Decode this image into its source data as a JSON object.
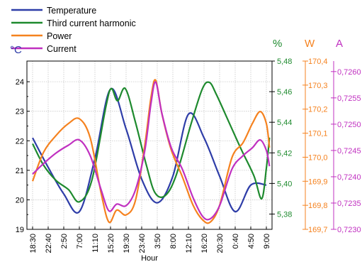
{
  "chart_data": {
    "type": "line",
    "xlabel": "Hour",
    "categories": [
      "18:30",
      "22:40",
      "2:50",
      "7:00",
      "11:10",
      "15:20",
      "19:30",
      "23:40",
      "3:50",
      "8:00",
      "12:10",
      "16:20",
      "20:30",
      "0:40",
      "4:50",
      "9:00"
    ],
    "x": [
      0,
      1,
      2,
      3,
      4,
      5,
      6,
      7,
      8,
      9,
      10,
      11,
      12,
      13,
      14,
      15
    ],
    "grid": true,
    "legend_position": "top-left",
    "axes": [
      {
        "id": "temp",
        "unit": "°C",
        "side": "left",
        "ylim": [
          19,
          24.7
        ],
        "ticks": [
          "19",
          "20",
          "21",
          "22",
          "23",
          "24"
        ],
        "color": "#222222"
      },
      {
        "id": "pct",
        "unit": "%",
        "side": "right",
        "ylim": [
          5.37,
          5.48
        ],
        "ticks": [
          "5,38",
          "5,40",
          "5,42",
          "5,44",
          "5,46",
          "5,48"
        ],
        "color": "#1e8a2e"
      },
      {
        "id": "watt",
        "unit": "W",
        "side": "right",
        "ylim": [
          169.7,
          170.4
        ],
        "ticks": [
          "169,7",
          "169,8",
          "169,9",
          "170,0",
          "170,1",
          "170,2",
          "170,3",
          "170,4"
        ],
        "color": "#f5821f"
      },
      {
        "id": "amp",
        "unit": "A",
        "side": "right",
        "ylim": [
          0.723,
          0.7262
        ],
        "ticks": [
          "0,7230",
          "0,7235",
          "0,7240",
          "0,7245",
          "0,7250",
          "0,7255",
          "0,7260"
        ],
        "color": "#c030c0"
      }
    ],
    "series": [
      {
        "name": "Temperature",
        "axis": "temp",
        "color": "#2e3da8",
        "points": [
          [
            0,
            22.1
          ],
          [
            1,
            21.1
          ],
          [
            2,
            20.2
          ],
          [
            3,
            19.6
          ],
          [
            4,
            21.4
          ],
          [
            5,
            23.75
          ],
          [
            6,
            22.4
          ],
          [
            7,
            20.7
          ],
          [
            8,
            19.9
          ],
          [
            9,
            20.8
          ],
          [
            10,
            22.9
          ],
          [
            11,
            22.1
          ],
          [
            12,
            20.8
          ],
          [
            13,
            19.6
          ],
          [
            14,
            20.5
          ],
          [
            15,
            20.5
          ]
        ]
      },
      {
        "name": "Third current harmonic",
        "axis": "pct",
        "color": "#1e8a2e",
        "points": [
          [
            0,
            5.426
          ],
          [
            0.7,
            5.412
          ],
          [
            1.5,
            5.402
          ],
          [
            2.3,
            5.396
          ],
          [
            3,
            5.388
          ],
          [
            3.8,
            5.402
          ],
          [
            4.7,
            5.45
          ],
          [
            5.05,
            5.462
          ],
          [
            5.45,
            5.454
          ],
          [
            5.95,
            5.462
          ],
          [
            6.6,
            5.44
          ],
          [
            7.3,
            5.412
          ],
          [
            7.85,
            5.394
          ],
          [
            8.5,
            5.392
          ],
          [
            9.2,
            5.405
          ],
          [
            10.2,
            5.44
          ],
          [
            10.9,
            5.462
          ],
          [
            11.35,
            5.466
          ],
          [
            11.8,
            5.458
          ],
          [
            12.6,
            5.44
          ],
          [
            13.4,
            5.422
          ],
          [
            14.2,
            5.405
          ],
          [
            14.7,
            5.39
          ],
          [
            15,
            5.41
          ],
          [
            15.2,
            5.43
          ]
        ]
      },
      {
        "name": "Power",
        "axis": "watt",
        "color": "#f5821f",
        "points": [
          [
            0,
            169.9
          ],
          [
            0.7,
            170.02
          ],
          [
            1.5,
            170.09
          ],
          [
            2.3,
            170.14
          ],
          [
            3,
            170.16
          ],
          [
            3.7,
            170.08
          ],
          [
            4.4,
            169.85
          ],
          [
            4.9,
            169.73
          ],
          [
            5.4,
            169.78
          ],
          [
            6,
            169.76
          ],
          [
            6.6,
            169.82
          ],
          [
            7.2,
            170.05
          ],
          [
            7.6,
            170.25
          ],
          [
            7.9,
            170.32
          ],
          [
            8.3,
            170.18
          ],
          [
            8.9,
            170.03
          ],
          [
            9.6,
            169.92
          ],
          [
            10.3,
            169.8
          ],
          [
            10.9,
            169.74
          ],
          [
            11.4,
            169.73
          ],
          [
            12,
            169.8
          ],
          [
            12.8,
            170.0
          ],
          [
            13.5,
            170.06
          ],
          [
            14.1,
            170.14
          ],
          [
            14.6,
            170.19
          ],
          [
            15,
            170.14
          ],
          [
            15.2,
            170.04
          ]
        ]
      },
      {
        "name": "Current",
        "axis": "amp",
        "color": "#c030c0",
        "points": [
          [
            0,
            0.72405
          ],
          [
            0.7,
            0.72425
          ],
          [
            1.5,
            0.72445
          ],
          [
            2.3,
            0.7246
          ],
          [
            3,
            0.7247
          ],
          [
            3.7,
            0.7244
          ],
          [
            4.4,
            0.72375
          ],
          [
            4.9,
            0.72335
          ],
          [
            5.4,
            0.72348
          ],
          [
            6,
            0.72345
          ],
          [
            6.6,
            0.72375
          ],
          [
            7.2,
            0.7245
          ],
          [
            7.6,
            0.7254
          ],
          [
            7.9,
            0.7258
          ],
          [
            8.3,
            0.7252
          ],
          [
            8.9,
            0.72455
          ],
          [
            9.6,
            0.72415
          ],
          [
            10.3,
            0.7236
          ],
          [
            10.9,
            0.72325
          ],
          [
            11.4,
            0.7232
          ],
          [
            12,
            0.72345
          ],
          [
            12.8,
            0.72415
          ],
          [
            13.5,
            0.7244
          ],
          [
            14.1,
            0.72455
          ],
          [
            14.6,
            0.7247
          ],
          [
            15,
            0.7245
          ],
          [
            15.2,
            0.7242
          ]
        ]
      }
    ]
  }
}
